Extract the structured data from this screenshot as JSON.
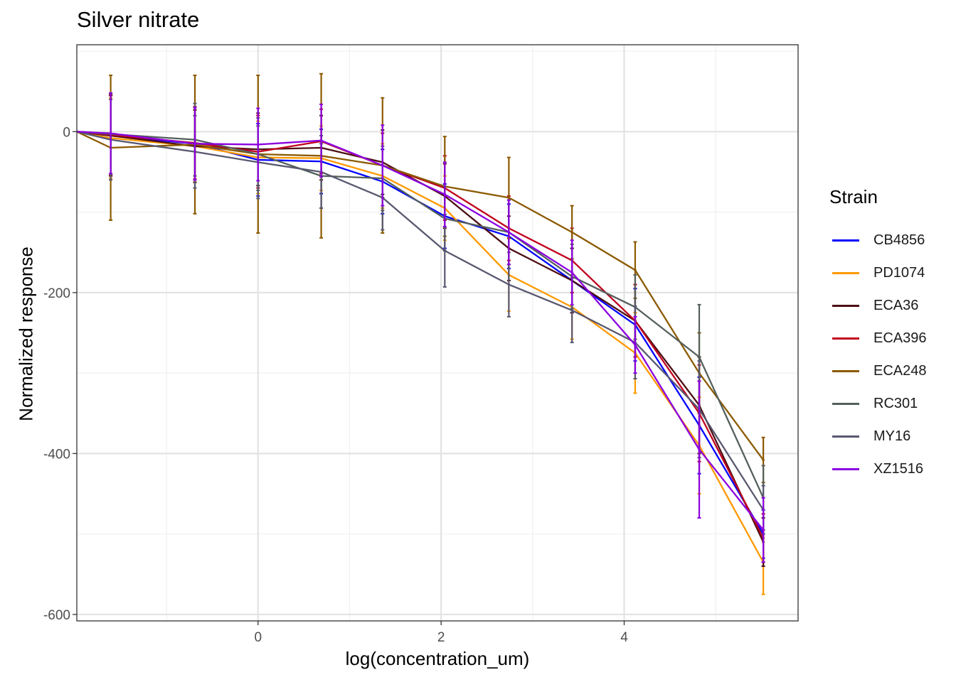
{
  "chart_data": {
    "type": "line",
    "title": "Silver nitrate",
    "xlabel": "log(concentration_um)",
    "ylabel": "Normalized response",
    "xlim": [
      -1.98,
      5.9
    ],
    "ylim": [
      -608,
      108
    ],
    "x_ticks": [
      0,
      2,
      4
    ],
    "y_ticks": [
      0,
      -200,
      -400,
      -600
    ],
    "grid": true,
    "legend_title": "Strain",
    "legend_position": "right",
    "x": [
      -1.61,
      -0.69,
      0,
      0.69,
      1.36,
      2.04,
      2.74,
      3.43,
      4.12,
      4.82,
      5.52
    ],
    "x_start": -1.98,
    "series": [
      {
        "name": "CB4856",
        "color": "#0000ff",
        "values": [
          -5,
          -15,
          -35,
          -37,
          -62,
          -105,
          -130,
          -185,
          -240,
          -365,
          -500
        ],
        "errors": [
          50,
          45,
          45,
          40,
          40,
          40,
          40,
          40,
          45,
          60,
          30
        ]
      },
      {
        "name": "PD1074",
        "color": "#ff9900",
        "values": [
          -8,
          -18,
          -32,
          -33,
          -55,
          -95,
          -178,
          -218,
          -275,
          -390,
          -535
        ],
        "errors": [
          50,
          45,
          45,
          40,
          40,
          40,
          45,
          40,
          50,
          60,
          40
        ]
      },
      {
        "name": "ECA36",
        "color": "#4d0f13",
        "values": [
          -5,
          -18,
          -22,
          -20,
          -38,
          -80,
          -145,
          -185,
          -235,
          -340,
          -510
        ],
        "errors": [
          50,
          45,
          45,
          40,
          40,
          40,
          40,
          40,
          45,
          60,
          30
        ]
      },
      {
        "name": "ECA396",
        "color": "#c0001e",
        "values": [
          -4,
          -14,
          -25,
          -12,
          -42,
          -70,
          -120,
          -160,
          -235,
          -350,
          -505
        ],
        "errors": [
          50,
          45,
          45,
          40,
          40,
          40,
          40,
          40,
          45,
          60,
          30
        ]
      },
      {
        "name": "ECA248",
        "color": "#8b5a00",
        "values": [
          -20,
          -16,
          -28,
          -30,
          -42,
          -68,
          -82,
          -125,
          -172,
          -300,
          -408
        ],
        "errors": [
          90,
          86,
          98,
          102,
          84,
          62,
          50,
          33,
          35,
          50,
          28
        ]
      },
      {
        "name": "RC301",
        "color": "#54605b",
        "values": [
          -3,
          -10,
          -28,
          -55,
          -58,
          -108,
          -125,
          -180,
          -218,
          -280,
          -455
        ],
        "errors": [
          50,
          45,
          45,
          40,
          40,
          40,
          40,
          40,
          40,
          65,
          40
        ]
      },
      {
        "name": "MY16",
        "color": "#585870",
        "values": [
          -10,
          -25,
          -38,
          -50,
          -82,
          -148,
          -190,
          -222,
          -262,
          -345,
          -470
        ],
        "errors": [
          50,
          45,
          45,
          45,
          40,
          45,
          40,
          40,
          45,
          60,
          30
        ]
      },
      {
        "name": "XZ1516",
        "color": "#8b00e0",
        "values": [
          -2,
          -15,
          -16,
          -11,
          -42,
          -78,
          -125,
          -175,
          -265,
          -395,
          -495
        ],
        "errors": [
          50,
          45,
          45,
          45,
          50,
          40,
          40,
          40,
          35,
          85,
          40
        ]
      }
    ]
  }
}
